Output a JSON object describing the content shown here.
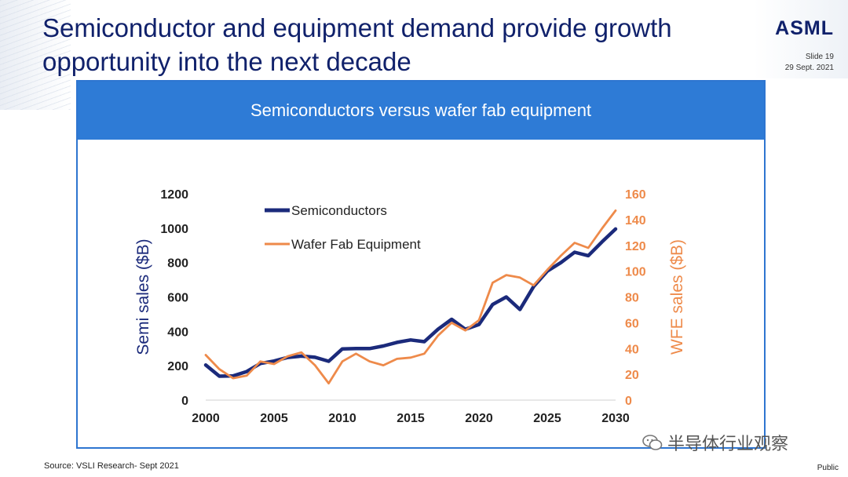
{
  "slide": {
    "title_line1": "Semiconductor and equipment demand provide growth",
    "title_line2": "opportunity into the next decade",
    "logo": "ASML",
    "slide_number": "Slide 19",
    "date": "29 Sept. 2021",
    "source": "Source: VSLI Research- Sept 2021",
    "classification": "Public",
    "watermark": "半导体行业观察"
  },
  "colors": {
    "semi": "#1b2a7b",
    "wfe": "#ee8a4a",
    "header": "#2e7bd6",
    "title": "#10216b"
  },
  "chart_data": {
    "type": "line",
    "title": "Semiconductors versus wafer fab equipment",
    "xlabel": "",
    "x": [
      2000,
      2001,
      2002,
      2003,
      2004,
      2005,
      2006,
      2007,
      2008,
      2009,
      2010,
      2011,
      2012,
      2013,
      2014,
      2015,
      2016,
      2017,
      2018,
      2019,
      2020,
      2021,
      2022,
      2023,
      2024,
      2025,
      2026,
      2027,
      2028,
      2029,
      2030
    ],
    "x_ticks": [
      2000,
      2005,
      2010,
      2015,
      2020,
      2025,
      2030
    ],
    "xlim": [
      2000,
      2030
    ],
    "y_left": {
      "label": "Semi sales ($B)",
      "lim": [
        0,
        1200
      ],
      "ticks": [
        0,
        200,
        400,
        600,
        800,
        1000,
        1200
      ]
    },
    "y_right": {
      "label": "WFE sales ($B)",
      "lim": [
        0,
        160
      ],
      "ticks": [
        0,
        20,
        40,
        60,
        80,
        100,
        120,
        140,
        160
      ]
    },
    "series": [
      {
        "name": "Semiconductors",
        "axis": "left",
        "values": [
          204,
          139,
          141,
          166,
          213,
          227,
          248,
          256,
          249,
          226,
          298,
          300,
          300,
          315,
          336,
          350,
          340,
          412,
          470,
          412,
          440,
          556,
          600,
          527,
          660,
          750,
          800,
          860,
          840,
          920,
          995
        ]
      },
      {
        "name": "Wafer Fab Equipment",
        "axis": "right",
        "values": [
          35,
          24,
          17,
          19,
          30,
          28,
          34,
          37,
          27,
          13,
          30,
          36,
          30,
          27,
          32,
          33,
          36,
          50,
          60,
          54,
          62,
          91,
          97,
          95,
          89,
          101,
          112,
          122,
          118,
          133,
          147
        ]
      }
    ],
    "legend": "top-left",
    "grid": false
  }
}
